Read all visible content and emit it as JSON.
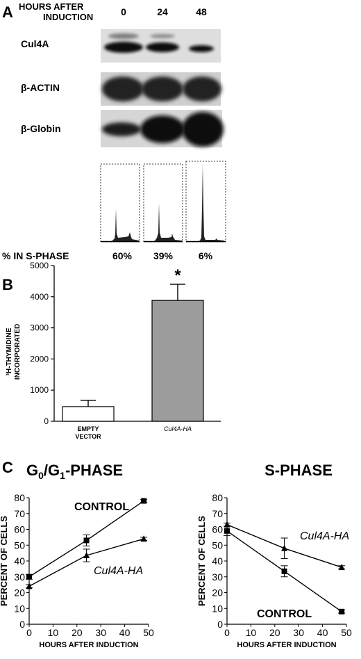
{
  "panel_a": {
    "label": "A",
    "header_line1": "HOURS AFTER",
    "header_line2": "INDUCTION",
    "timepoints": [
      "0",
      "24",
      "48"
    ],
    "blots": [
      {
        "name": "Cul4A",
        "intensity": [
          1.0,
          0.85,
          0.45
        ]
      },
      {
        "name": "β-ACTIN",
        "intensity": [
          0.9,
          0.9,
          0.9
        ]
      },
      {
        "name": "β-Globin",
        "intensity": [
          0.55,
          0.95,
          1.0
        ]
      }
    ],
    "s_phase_label": "% IN S-PHASE",
    "s_phase_values": [
      "60%",
      "39%",
      "6%"
    ]
  },
  "panel_b": {
    "label": "B",
    "ylabel_line1": "³H-THYMIDINE",
    "ylabel_line2": "INCORPORATED",
    "significance_mark": "*",
    "chart_data": {
      "type": "bar",
      "categories": [
        "EMPTY VECTOR",
        "Cul4A-HA"
      ],
      "category_lines": [
        [
          "EMPTY",
          "VECTOR"
        ],
        [
          "Cul4A-HA"
        ]
      ],
      "values": [
        470,
        3880
      ],
      "errors": [
        200,
        520
      ],
      "colors": [
        "#ffffff",
        "#9c9c9c"
      ],
      "ylim": [
        0,
        5000
      ],
      "yticks": [
        0,
        1000,
        2000,
        3000,
        4000,
        5000
      ]
    }
  },
  "panel_c": {
    "label": "C",
    "charts": [
      {
        "title": "G0/G1-PHASE",
        "xlabel": "HOURS AFTER INDUCTION",
        "ylabel": "PERCENT OF CELLS",
        "chart_data": {
          "type": "line",
          "xlim": [
            0,
            50
          ],
          "ylim": [
            0,
            80
          ],
          "xticks": [
            0,
            10,
            20,
            30,
            40,
            50
          ],
          "yticks": [
            0,
            10,
            20,
            30,
            40,
            50,
            60,
            70,
            80
          ],
          "series": [
            {
              "name": "CONTROL",
              "marker": "square",
              "x": [
                0,
                24,
                48
              ],
              "y": [
                30,
                53,
                78
              ],
              "err": [
                1.5,
                3.5,
                1
              ]
            },
            {
              "name": "Cul4A-HA",
              "marker": "triangle",
              "x": [
                0,
                24,
                48
              ],
              "y": [
                24,
                43.5,
                54
              ],
              "err": [
                1,
                4,
                1
              ]
            }
          ]
        }
      },
      {
        "title": "S-PHASE",
        "xlabel": "HOURS AFTER INDUCTION",
        "ylabel": "PERCENT OF CELLS",
        "chart_data": {
          "type": "line",
          "xlim": [
            0,
            50
          ],
          "ylim": [
            0,
            80
          ],
          "xticks": [
            0,
            10,
            20,
            30,
            40,
            50
          ],
          "yticks": [
            0,
            10,
            20,
            30,
            40,
            50,
            60,
            70,
            80
          ],
          "series": [
            {
              "name": "Cul4A-HA",
              "marker": "triangle",
              "x": [
                0,
                24,
                48
              ],
              "y": [
                63,
                48,
                36
              ],
              "err": [
                1,
                6.5,
                1
              ]
            },
            {
              "name": "CONTROL",
              "marker": "square",
              "x": [
                0,
                24,
                48
              ],
              "y": [
                59,
                33.5,
                8
              ],
              "err": [
                3,
                3.5,
                1
              ]
            }
          ]
        }
      }
    ]
  }
}
